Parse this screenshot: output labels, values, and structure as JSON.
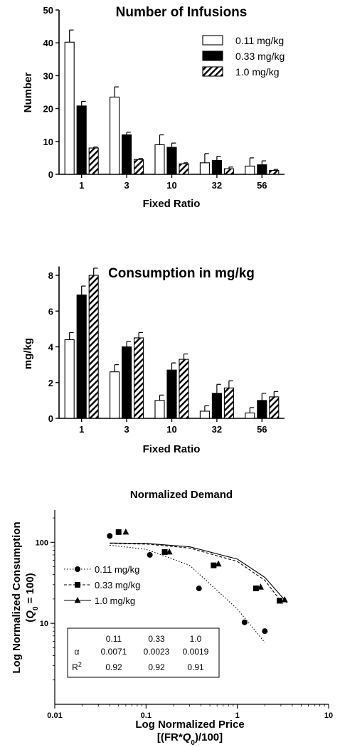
{
  "chart_data": [
    {
      "type": "bar",
      "title": "Number of Infusions",
      "xlabel": "Fixed Ratio",
      "ylabel": "Number",
      "categories": [
        "1",
        "3",
        "10",
        "32",
        "56"
      ],
      "ylim": [
        0,
        50
      ],
      "yticks": [
        0,
        10,
        20,
        30,
        40,
        50
      ],
      "legend_position": "top-right",
      "series": [
        {
          "name": "0.11 mg/kg",
          "fill": "white",
          "values": [
            40.2,
            23.5,
            9.0,
            3.5,
            2.5
          ],
          "errors": [
            3.7,
            3.1,
            3.0,
            2.8,
            2.5
          ]
        },
        {
          "name": "0.33 mg/kg",
          "fill": "black",
          "values": [
            20.8,
            12.0,
            8.2,
            4.2,
            2.9
          ],
          "errors": [
            1.4,
            0.8,
            1.3,
            1.3,
            1.2
          ]
        },
        {
          "name": "1.0 mg/kg",
          "fill": "hatched",
          "values": [
            8.0,
            4.5,
            3.2,
            1.7,
            1.2
          ],
          "errors": [
            0.3,
            0.3,
            0.3,
            0.5,
            0.3
          ]
        }
      ]
    },
    {
      "type": "bar",
      "title": "Consumption in mg/kg",
      "xlabel": "Fixed Ratio",
      "ylabel": "mg/kg",
      "categories": [
        "1",
        "3",
        "10",
        "32",
        "56"
      ],
      "ylim": [
        0,
        8.5
      ],
      "yticks": [
        0,
        2,
        4,
        6,
        8
      ],
      "series": [
        {
          "name": "0.11 mg/kg",
          "fill": "white",
          "values": [
            4.4,
            2.6,
            1.0,
            0.4,
            0.3
          ],
          "errors": [
            0.4,
            0.4,
            0.3,
            0.3,
            0.3
          ]
        },
        {
          "name": "0.33 mg/kg",
          "fill": "black",
          "values": [
            6.9,
            4.0,
            2.7,
            1.4,
            1.0
          ],
          "errors": [
            0.5,
            0.3,
            0.4,
            0.5,
            0.4
          ]
        },
        {
          "name": "1.0 mg/kg",
          "fill": "hatched",
          "values": [
            8.0,
            4.5,
            3.3,
            1.7,
            1.2
          ],
          "errors": [
            0.4,
            0.3,
            0.3,
            0.4,
            0.3
          ]
        }
      ]
    },
    {
      "type": "scatter",
      "title": "Normalized Demand",
      "xlabel": "Log Normalized Price",
      "xlabel2": "[(FR*Q0)/100]",
      "ylabel": "Log Normalized Consumption",
      "ylabel2": "(Q0 = 100)",
      "xscale": "log",
      "yscale": "log",
      "xlim": [
        0.01,
        10
      ],
      "ylim": [
        1,
        250
      ],
      "xticks": [
        "0.01",
        "0.1",
        "1",
        "10"
      ],
      "yticks": [
        "10",
        "100"
      ],
      "legend_position": "middle-left",
      "series": [
        {
          "name": "0.11 mg/kg",
          "marker": "circle",
          "line": "dotted",
          "x": [
            0.04,
            0.11,
            0.38,
            1.2,
            2.0
          ],
          "y": [
            120,
            70,
            27,
            10.3,
            8.0
          ],
          "curve_x": [
            0.04,
            0.1,
            0.3,
            1.0,
            2.0
          ],
          "curve_y": [
            92,
            82,
            52,
            15,
            5.8
          ]
        },
        {
          "name": "0.33 mg/kg",
          "marker": "square",
          "line": "dashed",
          "x": [
            0.05,
            0.16,
            0.55,
            1.6,
            2.9
          ],
          "y": [
            134,
            76,
            52,
            27,
            19
          ],
          "curve_x": [
            0.04,
            0.1,
            0.3,
            1.0,
            2.0,
            3.2
          ],
          "curve_y": [
            97,
            95,
            85,
            58,
            34,
            17
          ]
        },
        {
          "name": "1.0 mg/kg",
          "marker": "triangle",
          "line": "solid",
          "x": [
            0.06,
            0.18,
            0.62,
            1.8,
            3.3
          ],
          "y": [
            134,
            76,
            54,
            28,
            19.5
          ],
          "curve_x": [
            0.04,
            0.1,
            0.3,
            1.0,
            2.0,
            3.5
          ],
          "curve_y": [
            98,
            97,
            88,
            62,
            37,
            18
          ]
        }
      ],
      "parameter_table": {
        "headers": [
          "",
          "0.11",
          "0.33",
          "1.0"
        ],
        "rows": [
          [
            "α",
            "0.0071",
            "0.0023",
            "0.0019"
          ],
          [
            "R2",
            "0.92",
            "0.92",
            "0.91"
          ]
        ]
      }
    }
  ]
}
